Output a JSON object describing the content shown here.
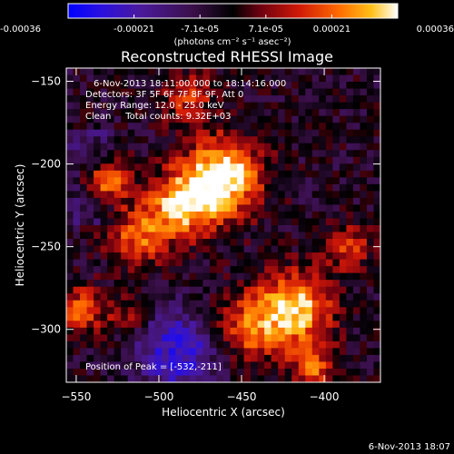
{
  "chart_data": {
    "type": "heatmap",
    "title": "Reconstructed RHESSI Image",
    "xlabel": "Heliocentric X (arcsec)",
    "ylabel": "Heliocentric Y (arcsec)",
    "xlim": [
      -556,
      -366
    ],
    "ylim": [
      -332,
      -142
    ],
    "x_ticks": [
      -550,
      -500,
      -450,
      -400
    ],
    "y_ticks": [
      -300,
      -250,
      -200,
      -150
    ],
    "colorbar": {
      "min": -0.00036,
      "max": 0.00036,
      "ticks": [
        "-0.00036",
        "-0.00021",
        "-7.1e-05",
        "7.1e-05",
        "0.00021",
        "0.00036"
      ],
      "units": "(photons cm⁻² s⁻¹ asec⁻²)"
    },
    "annotations": [
      "6-Nov-2013 18:11:00.000 to 18:14:16.000",
      "Detectors: 3F 5F 6F 7F 8F 9F, Att 0",
      "Energy Range: 12.0 - 25.0 keV",
      "Clean     Total counts: 9.32E+03"
    ],
    "peak_label": "Position of Peak = [-532,-211]",
    "peak": [
      -532,
      -211
    ],
    "sources": [
      {
        "x": -461,
        "y": -208,
        "amplitude": 1.0,
        "sigma": 16
      },
      {
        "x": -487,
        "y": -225,
        "amplitude": 0.8,
        "sigma": 14
      },
      {
        "x": -532,
        "y": -211,
        "amplitude": 0.7,
        "sigma": 10
      },
      {
        "x": -513,
        "y": -245,
        "amplitude": 0.55,
        "sigma": 12
      },
      {
        "x": -418,
        "y": -288,
        "amplitude": 0.85,
        "sigma": 16
      },
      {
        "x": -447,
        "y": -300,
        "amplitude": 0.5,
        "sigma": 14
      },
      {
        "x": -548,
        "y": -288,
        "amplitude": 0.55,
        "sigma": 10
      },
      {
        "x": -386,
        "y": -250,
        "amplitude": 0.45,
        "sigma": 10
      },
      {
        "x": -406,
        "y": -325,
        "amplitude": 0.5,
        "sigma": 10
      },
      {
        "x": -482,
        "y": -160,
        "amplitude": 0.4,
        "sigma": 12
      },
      {
        "x": -520,
        "y": -292,
        "amplitude": 0.3,
        "sigma": 9
      }
    ],
    "negative_region": {
      "x": -488,
      "y": -314,
      "sigma": 18
    }
  },
  "footer": {
    "timestamp": "6-Nov-2013 18:07"
  }
}
